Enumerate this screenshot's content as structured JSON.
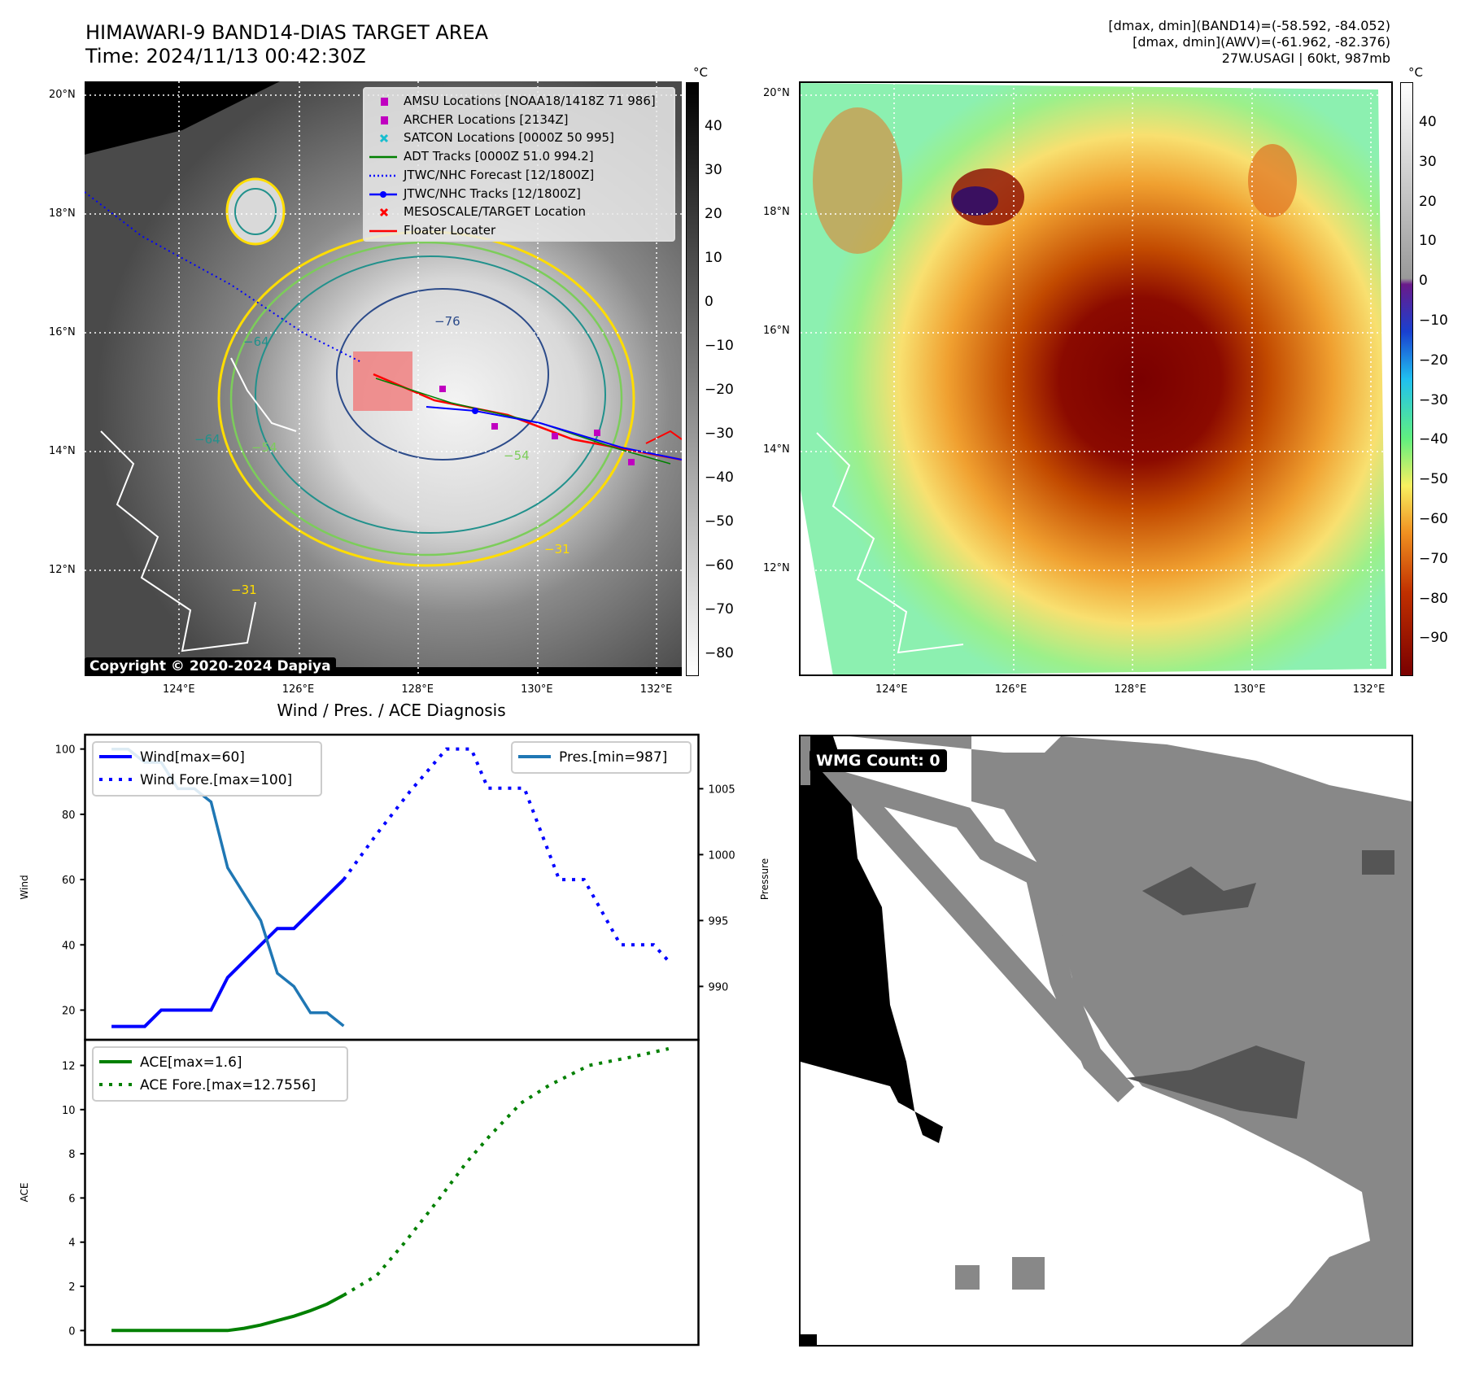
{
  "header": {
    "title_line1": "HIMAWARI-9 BAND14-DIAS TARGET AREA",
    "title_line2": "Time: 2024/11/13 00:42:30Z",
    "info_line1": "[dmax, dmin](BAND14)=(-58.592, -84.052)",
    "info_line2": "[dmax, dmin](AWV)=(-61.962, -82.376)",
    "info_line3": "27W.USAGI | 60kt, 987mb"
  },
  "maps": {
    "lat_labels": [
      "20°N",
      "18°N",
      "16°N",
      "14°N",
      "12°N"
    ],
    "lon_labels": [
      "124°E",
      "126°E",
      "128°E",
      "130°E",
      "132°E"
    ],
    "colorbar_unit": "°C",
    "band14_colorbar_ticks": [
      "40",
      "30",
      "20",
      "10",
      "0",
      "−10",
      "−20",
      "−30",
      "−40",
      "−50",
      "−60",
      "−70",
      "−80"
    ],
    "awv_colorbar_ticks": [
      "40",
      "30",
      "20",
      "10",
      "0",
      "−10",
      "−20",
      "−30",
      "−40",
      "−50",
      "−60",
      "−70",
      "−80",
      "−90"
    ],
    "contour_labels": [
      "−76",
      "−64",
      "−64",
      "−54",
      "−54",
      "−31",
      "−31"
    ],
    "copyright": "Copyright © 2020-2024 Dapiya",
    "legend": [
      {
        "label": "AMSU Locations [NOAA18/1418Z 71 986]",
        "marker": "square",
        "color": "#c000c0"
      },
      {
        "label": "ARCHER Locations [2134Z]",
        "marker": "square",
        "color": "#c000c0"
      },
      {
        "label": "SATCON Locations [0000Z 50 995]",
        "marker": "x",
        "color": "#17becf"
      },
      {
        "label": "ADT Tracks [0000Z 51.0 994.2]",
        "marker": "line",
        "color": "#008000"
      },
      {
        "label": "JTWC/NHC Forecast [12/1800Z]",
        "marker": "dotted",
        "color": "#0000ff"
      },
      {
        "label": "JTWC/NHC Tracks [12/1800Z]",
        "marker": "line-dot",
        "color": "#0000ff"
      },
      {
        "label": "MESOSCALE/TARGET Location",
        "marker": "x",
        "color": "#ff0000"
      },
      {
        "label": "Floater Locater",
        "marker": "line",
        "color": "#ff0000"
      }
    ]
  },
  "wmg": {
    "label": "WMG Count: 0"
  },
  "chart_data": [
    {
      "type": "line",
      "title": "Wind / Pres. / ACE Diagnosis",
      "ylabel": "Wind",
      "y2label": "Pressure",
      "xlim": [
        -1.6,
        35.4
      ],
      "ylim": [
        10.9,
        104.4
      ],
      "y2lim": [
        985.95,
        1009.1
      ],
      "yticks": [
        20,
        40,
        60,
        80,
        100
      ],
      "y2ticks": [
        990,
        995,
        1000,
        1005
      ],
      "series": [
        {
          "name": "Wind[max=60]",
          "axis": "left",
          "style": "solid",
          "color": "#0000ff",
          "x": [
            0,
            1,
            2,
            3,
            4,
            5,
            6,
            7,
            8,
            9,
            10,
            11,
            12,
            13,
            14
          ],
          "y": [
            15,
            15,
            15,
            20,
            20,
            20,
            20,
            30,
            35,
            40,
            45,
            45,
            50,
            55,
            60
          ]
        },
        {
          "name": "Wind Fore.[max=100]",
          "axis": "left",
          "style": "dotted",
          "color": "#0000ff",
          "x": [
            14,
            16,
            18,
            20.2,
            21.7,
            22.7,
            24.9,
            27,
            28.5,
            30.7,
            32.7,
            33.6
          ],
          "y": [
            60,
            74,
            87,
            100,
            100,
            88,
            88,
            60,
            60,
            40,
            40,
            35
          ]
        },
        {
          "name": "Pres.[min=987]",
          "axis": "right",
          "style": "solid",
          "color": "#1f77b4",
          "x": [
            0,
            1,
            2,
            3,
            4,
            5,
            6,
            7,
            8,
            9,
            10,
            11,
            12,
            13,
            14
          ],
          "y": [
            1008,
            1008,
            1007,
            1007,
            1005,
            1005,
            1004,
            999,
            997,
            995,
            991,
            990,
            988,
            988,
            987
          ]
        }
      ]
    },
    {
      "type": "line",
      "ylabel": "ACE",
      "xlim": [
        -1.6,
        35.4
      ],
      "ylim": [
        -0.65,
        13.16
      ],
      "yticks": [
        0,
        2,
        4,
        6,
        8,
        10,
        12
      ],
      "series": [
        {
          "name": "ACE[max=1.6]",
          "style": "solid",
          "color": "#008000",
          "x": [
            0,
            2,
            4,
            6,
            7,
            8,
            9,
            10,
            11,
            12,
            13,
            14
          ],
          "y": [
            0,
            0,
            0,
            0,
            0,
            0.1,
            0.25,
            0.45,
            0.65,
            0.9,
            1.2,
            1.6
          ]
        },
        {
          "name": "ACE Fore.[max=12.7556]",
          "style": "dotted",
          "color": "#008000",
          "x": [
            14,
            16,
            17.7,
            19.8,
            21.4,
            22.8,
            24.7,
            26.4,
            28.8,
            31.5,
            33.6
          ],
          "y": [
            1.6,
            2.5,
            4.0,
            6.0,
            7.6,
            8.8,
            10.3,
            11.1,
            12.0,
            12.4,
            12.7556
          ]
        }
      ]
    }
  ]
}
